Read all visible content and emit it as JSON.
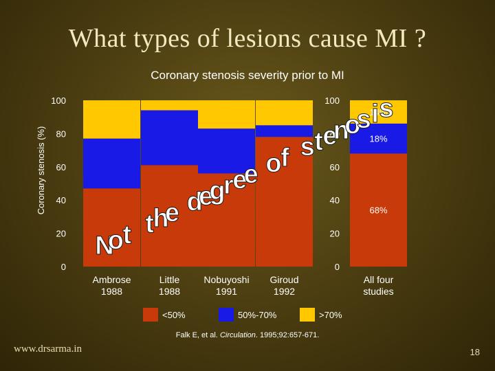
{
  "slide": {
    "title": "What types of lesions cause MI ?",
    "watermark": "www.drsarma.in",
    "number": "18"
  },
  "chart_data": {
    "type": "bar",
    "stacked": true,
    "title": "Coronary stenosis severity prior to MI",
    "ylabel": "Coronary stenosis (%)",
    "ylim": [
      0,
      100
    ],
    "yticks": [
      0,
      20,
      40,
      60,
      80,
      100
    ],
    "categories": [
      [
        "Ambrose",
        "1988"
      ],
      [
        "Little",
        "1988"
      ],
      [
        "Nobuyoshi",
        "1991"
      ],
      [
        "Giroud",
        "1992"
      ],
      [
        "All four",
        "studies"
      ]
    ],
    "series": [
      {
        "name": "<50%",
        "color": "#c83a0a",
        "values": [
          47,
          61,
          56,
          78,
          68
        ]
      },
      {
        "name": "50%-70%",
        "color": "#1a1ae6",
        "values": [
          30,
          33,
          27,
          7,
          18
        ]
      },
      {
        "name": ">70%",
        "color": "#ffc800",
        "values": [
          23,
          6,
          17,
          15,
          14
        ]
      }
    ],
    "data_labels": {
      "category_index": 4,
      "labels": [
        "68%",
        "18%",
        "14%"
      ]
    },
    "legend_position": "bottom",
    "overlay_text": "Not the degree of stenosis",
    "overlay_color": "#ffffff",
    "source": "Falk E, et al. Circulation. 1995;92:657-671."
  }
}
